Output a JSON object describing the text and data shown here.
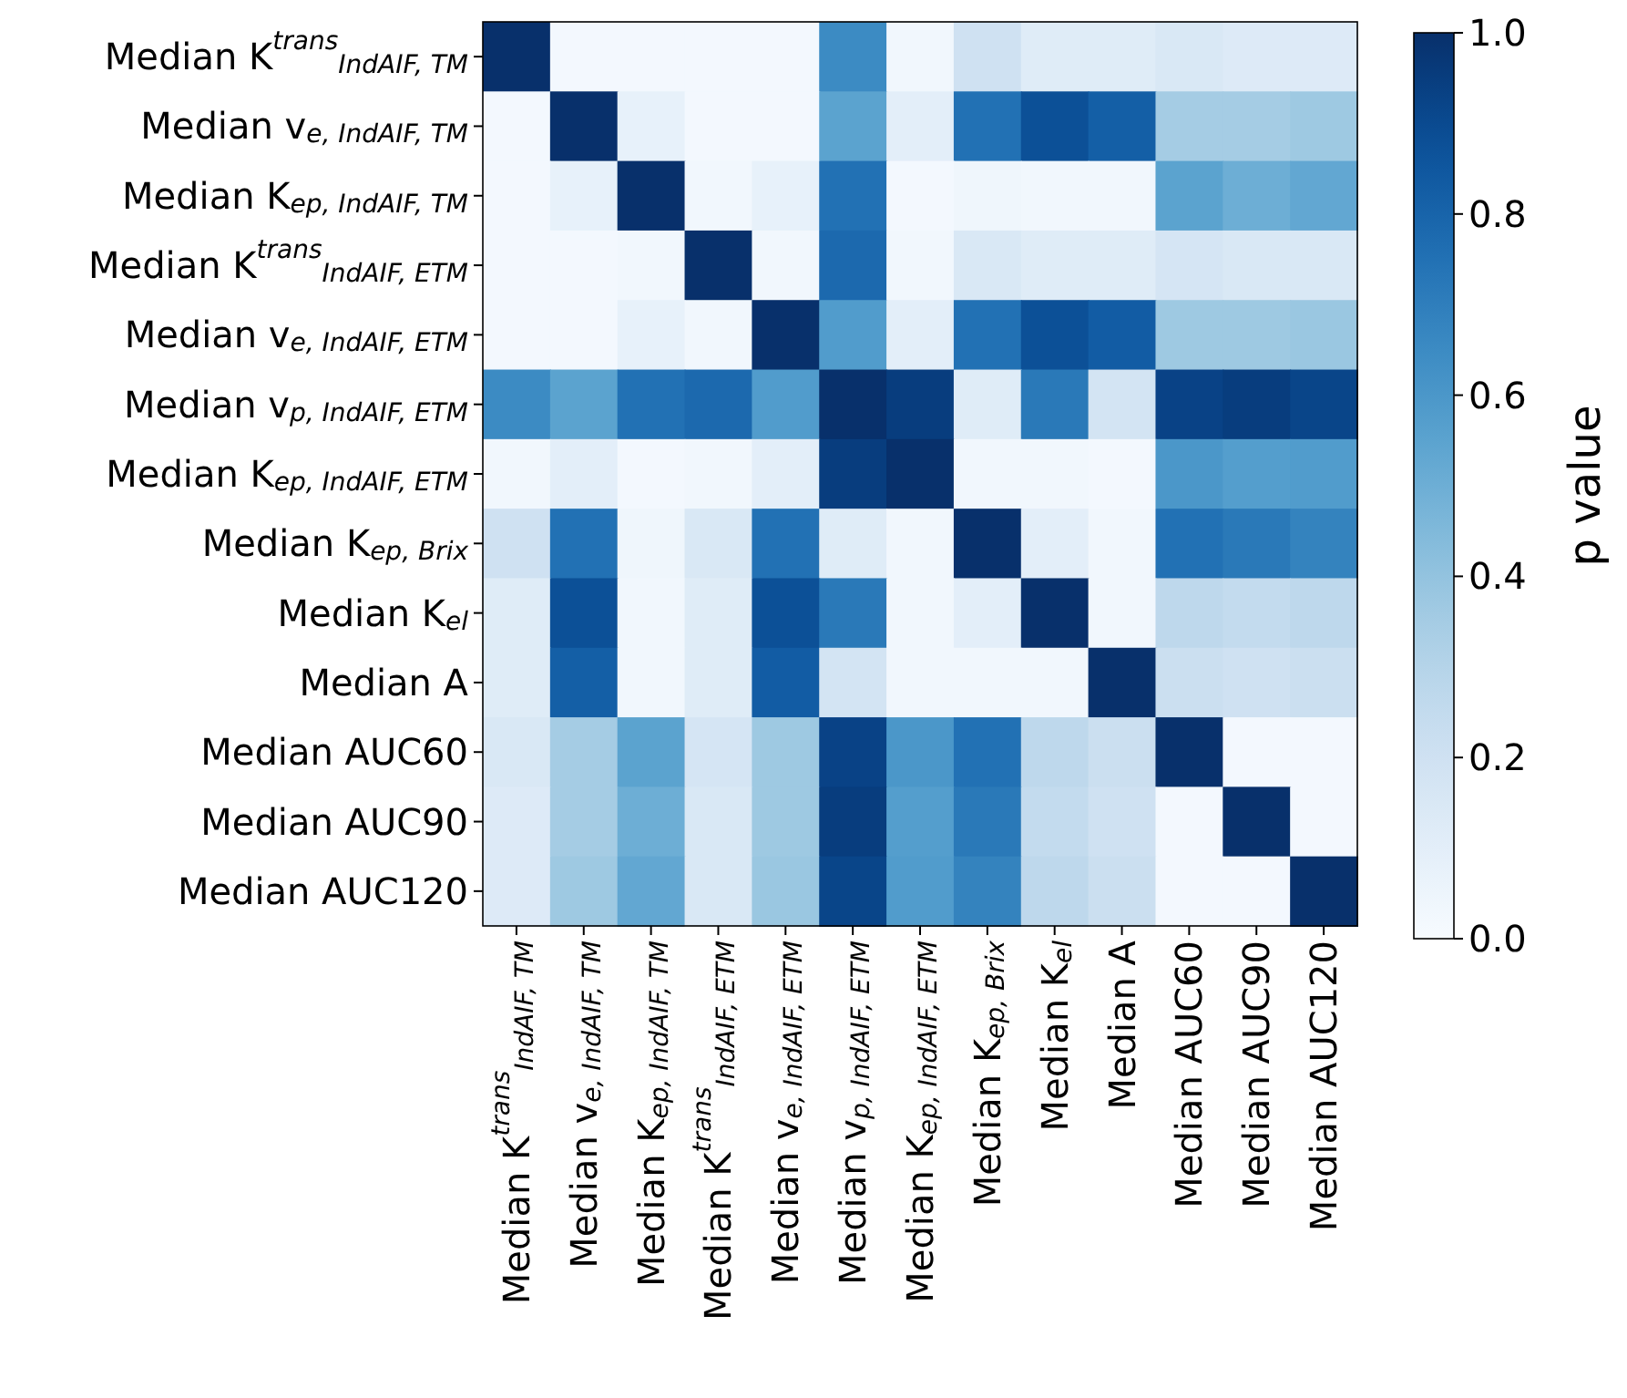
{
  "chart_data": {
    "type": "heatmap",
    "clabel": "p value",
    "categories": [
      "Median K$^{trans}$$_{IndAIF, TM}$",
      "Median v$_{e, IndAIF, TM}$",
      "Median K$_{ep, IndAIF, TM}$",
      "Median K$^{trans}$$_{IndAIF, ETM}$",
      "Median v$_{e, IndAIF, ETM}$",
      "Median v$_{p, IndAIF, ETM}$",
      "Median K$_{ep, IndAIF, ETM}$",
      "Median K$_{ep, Brix}$",
      "Median K$_{el}$",
      "Median A",
      "Median AUC60",
      "Median AUC90",
      "Median AUC120"
    ],
    "y_categories": [
      "Median K$^{trans}$$_{IndAIF, TM}$",
      "Median v$_{e, IndAIF, TM}$",
      "Median K$_{ep, IndAIF, TM}$",
      "Median K$^{trans}$$_{IndAIF, ETM}$",
      "Median v$_{e, IndAIF, ETM}$",
      "Median v$_{p, IndAIF, ETM}$",
      "Median K$_{ep, IndAIF, ETM}$",
      "Median K$_{ep, Brix}$",
      "Median K$_{el}$",
      "Median A",
      "Median AUC60",
      "Median AUC90",
      "Median AUC120"
    ],
    "cells": [
      [
        1.0,
        0.02,
        0.02,
        0.02,
        0.02,
        0.65,
        0.03,
        0.2,
        0.12,
        0.12,
        0.15,
        0.13,
        0.13
      ],
      [
        0.02,
        1.0,
        0.08,
        0.02,
        0.02,
        0.55,
        0.1,
        0.75,
        0.88,
        0.82,
        0.35,
        0.35,
        0.37
      ],
      [
        0.02,
        0.08,
        1.0,
        0.03,
        0.08,
        0.75,
        0.02,
        0.04,
        0.03,
        0.03,
        0.55,
        0.5,
        0.53
      ],
      [
        0.02,
        0.02,
        0.03,
        1.0,
        0.03,
        0.78,
        0.03,
        0.15,
        0.12,
        0.12,
        0.17,
        0.15,
        0.15
      ],
      [
        0.02,
        0.02,
        0.08,
        0.03,
        1.0,
        0.58,
        0.1,
        0.75,
        0.88,
        0.83,
        0.37,
        0.37,
        0.38
      ],
      [
        0.65,
        0.55,
        0.75,
        0.78,
        0.58,
        1.0,
        0.95,
        0.12,
        0.72,
        0.18,
        0.93,
        0.95,
        0.92
      ],
      [
        0.03,
        0.1,
        0.02,
        0.03,
        0.1,
        0.95,
        1.0,
        0.03,
        0.03,
        0.02,
        0.6,
        0.57,
        0.58
      ],
      [
        0.2,
        0.75,
        0.04,
        0.15,
        0.75,
        0.12,
        0.03,
        1.0,
        0.1,
        0.03,
        0.75,
        0.72,
        0.68
      ],
      [
        0.12,
        0.88,
        0.03,
        0.12,
        0.88,
        0.72,
        0.03,
        0.1,
        1.0,
        0.03,
        0.27,
        0.25,
        0.27
      ],
      [
        0.12,
        0.82,
        0.03,
        0.12,
        0.83,
        0.18,
        0.03,
        0.03,
        0.03,
        1.0,
        0.22,
        0.2,
        0.22
      ],
      [
        0.15,
        0.35,
        0.55,
        0.17,
        0.37,
        0.93,
        0.6,
        0.75,
        0.27,
        0.22,
        1.0,
        0.02,
        0.02
      ],
      [
        0.13,
        0.35,
        0.5,
        0.15,
        0.37,
        0.95,
        0.57,
        0.72,
        0.25,
        0.2,
        0.02,
        1.0,
        0.02
      ],
      [
        0.13,
        0.37,
        0.53,
        0.15,
        0.38,
        0.92,
        0.58,
        0.68,
        0.27,
        0.22,
        0.02,
        0.02,
        1.0
      ]
    ],
    "clim": [
      0,
      1
    ],
    "cticks": [
      {
        "value": 0,
        "label": "0.0"
      },
      {
        "value": 0.2,
        "label": "0.2"
      },
      {
        "value": 0.4,
        "label": "0.4"
      },
      {
        "value": 0.6,
        "label": "0.6"
      },
      {
        "value": 0.8,
        "label": "0.8"
      },
      {
        "value": 1,
        "label": "1.0"
      }
    ]
  }
}
